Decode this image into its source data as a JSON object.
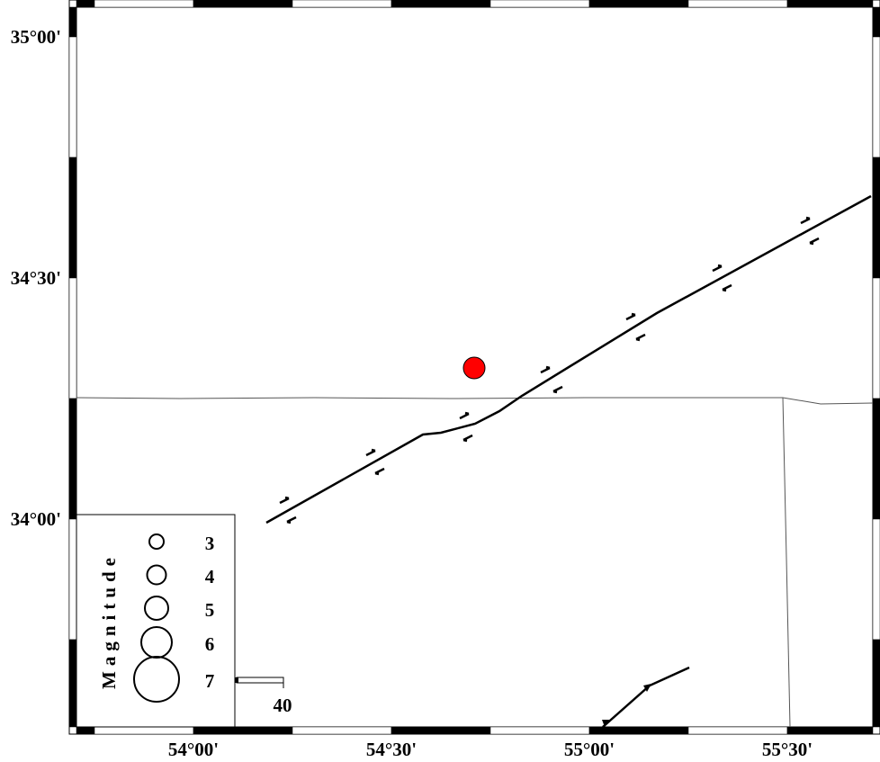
{
  "map": {
    "lon_ticks": [
      "54°00'",
      "54°30'",
      "55°00'",
      "55°30'"
    ],
    "lat_ticks": [
      "35°00'",
      "34°30'",
      "34°00'"
    ],
    "event_color": "#ff0000",
    "event": {
      "lon": 54.7,
      "lat": 34.3
    },
    "faults": [
      {
        "type": "strike-slip",
        "color": "#000000"
      },
      {
        "type": "thrust",
        "color": "#000000"
      }
    ],
    "boundary_color": "#000000"
  },
  "legend": {
    "title": "Magnitude",
    "items": [
      "3",
      "4",
      "5",
      "6",
      "7"
    ]
  },
  "scale_bar": {
    "label": "40"
  }
}
